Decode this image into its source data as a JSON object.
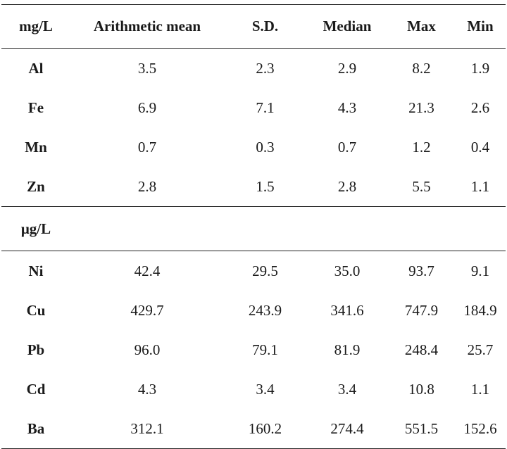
{
  "table": {
    "headers": [
      "mg/L",
      "Arithmetic mean",
      "S.D.",
      "Median",
      "Max",
      "Min"
    ],
    "group1_rows": [
      {
        "element": "Al",
        "values": [
          "3.5",
          "2.3",
          "2.9",
          "8.2",
          "1.9"
        ]
      },
      {
        "element": "Fe",
        "values": [
          "6.9",
          "7.1",
          "4.3",
          "21.3",
          "2.6"
        ]
      },
      {
        "element": "Mn",
        "values": [
          "0.7",
          "0.3",
          "0.7",
          "1.2",
          "0.4"
        ]
      },
      {
        "element": "Zn",
        "values": [
          "2.8",
          "1.5",
          "2.8",
          "5.5",
          "1.1"
        ]
      }
    ],
    "group2_unit": "μg/L",
    "group2_rows": [
      {
        "element": "Ni",
        "values": [
          "42.4",
          "29.5",
          "35.0",
          "93.7",
          "9.1"
        ]
      },
      {
        "element": "Cu",
        "values": [
          "429.7",
          "243.9",
          "341.6",
          "747.9",
          "184.9"
        ]
      },
      {
        "element": "Pb",
        "values": [
          "96.0",
          "79.1",
          "81.9",
          "248.4",
          "25.7"
        ]
      },
      {
        "element": "Cd",
        "values": [
          "4.3",
          "3.4",
          "3.4",
          "10.8",
          "1.1"
        ]
      },
      {
        "element": "Ba",
        "values": [
          "312.1",
          "160.2",
          "274.4",
          "551.5",
          "152.6"
        ]
      }
    ]
  }
}
